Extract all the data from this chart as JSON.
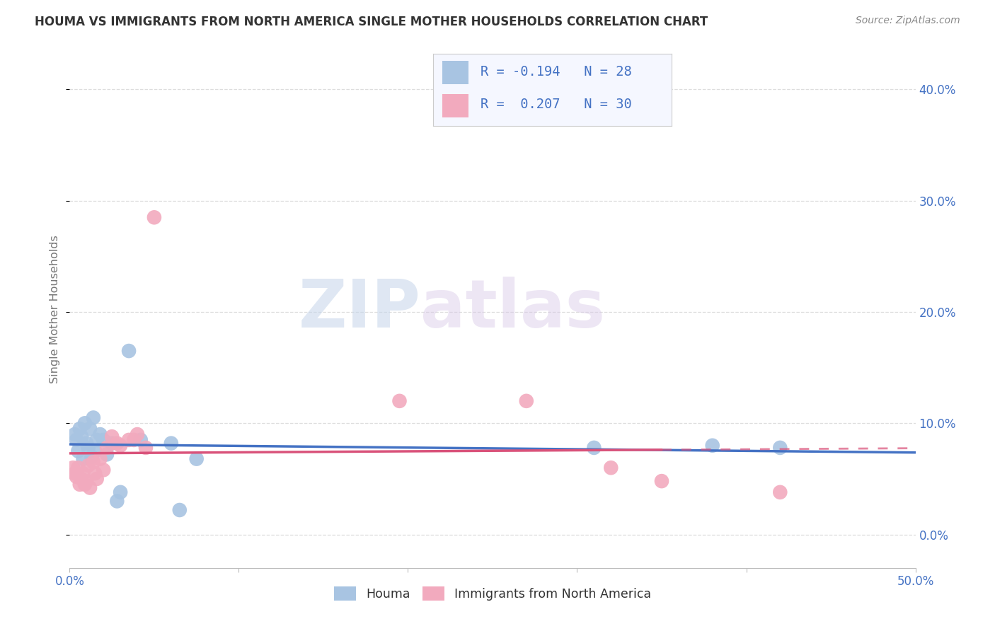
{
  "title": "HOUMA VS IMMIGRANTS FROM NORTH AMERICA SINGLE MOTHER HOUSEHOLDS CORRELATION CHART",
  "source": "Source: ZipAtlas.com",
  "ylabel": "Single Mother Households",
  "xlim": [
    0.0,
    0.5
  ],
  "ylim": [
    -0.03,
    0.435
  ],
  "houma_R": -0.194,
  "houma_N": 28,
  "immigrants_R": 0.207,
  "immigrants_N": 30,
  "houma_color": "#a8c4e2",
  "immigrants_color": "#f2aabe",
  "houma_line_color": "#4472c4",
  "immigrants_line_color": "#d9527a",
  "background_color": "#ffffff",
  "houma_x": [
    0.003,
    0.004,
    0.005,
    0.006,
    0.007,
    0.008,
    0.009,
    0.01,
    0.011,
    0.012,
    0.013,
    0.014,
    0.015,
    0.016,
    0.018,
    0.02,
    0.022,
    0.025,
    0.028,
    0.03,
    0.035,
    0.042,
    0.06,
    0.065,
    0.075,
    0.31,
    0.38,
    0.42
  ],
  "houma_y": [
    0.09,
    0.085,
    0.075,
    0.095,
    0.088,
    0.068,
    0.1,
    0.082,
    0.078,
    0.095,
    0.07,
    0.105,
    0.075,
    0.085,
    0.09,
    0.085,
    0.072,
    0.082,
    0.03,
    0.038,
    0.165,
    0.085,
    0.082,
    0.022,
    0.068,
    0.078,
    0.08,
    0.078
  ],
  "immigrants_x": [
    0.002,
    0.003,
    0.004,
    0.005,
    0.006,
    0.007,
    0.008,
    0.009,
    0.01,
    0.011,
    0.012,
    0.014,
    0.015,
    0.016,
    0.018,
    0.02,
    0.022,
    0.025,
    0.028,
    0.03,
    0.035,
    0.038,
    0.04,
    0.045,
    0.05,
    0.195,
    0.27,
    0.32,
    0.35,
    0.42
  ],
  "immigrants_y": [
    0.06,
    0.055,
    0.052,
    0.06,
    0.045,
    0.05,
    0.055,
    0.045,
    0.048,
    0.062,
    0.042,
    0.065,
    0.055,
    0.05,
    0.068,
    0.058,
    0.078,
    0.088,
    0.082,
    0.08,
    0.085,
    0.085,
    0.09,
    0.078,
    0.285,
    0.12,
    0.12,
    0.06,
    0.048,
    0.038
  ],
  "watermark_zip": "ZIP",
  "watermark_atlas": "atlas",
  "tick_label_color": "#4472c4",
  "ylabel_color": "#777777",
  "title_color": "#333333",
  "source_color": "#888888",
  "grid_color": "#dddddd",
  "legend_bg": "#f5f7ff",
  "legend_border": "#cccccc",
  "bottom_legend_label1": "Houma",
  "bottom_legend_label2": "Immigrants from North America",
  "dashed_split": 0.35,
  "ytick_positions": [
    0.0,
    0.1,
    0.2,
    0.3,
    0.4
  ],
  "xtick_positions": [
    0.0,
    0.1,
    0.2,
    0.3,
    0.4,
    0.5
  ]
}
